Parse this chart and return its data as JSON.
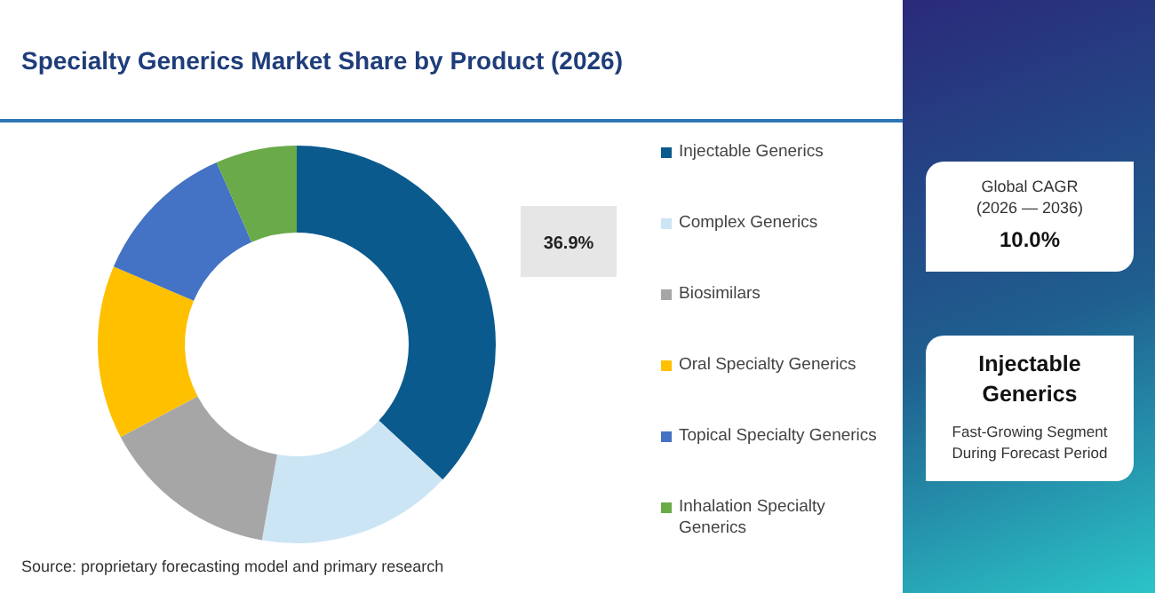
{
  "chart_data": {
    "type": "donut",
    "title": "Specialty Generics Market Share by Product (2026)",
    "categories": [
      "Injectable Generics",
      "Complex Generics",
      "Biosimilars",
      "Oral Specialty Generics",
      "Topical Specialty Generics",
      "Inhalation Specialty Generics"
    ],
    "values": [
      36.9,
      15.9,
      14.5,
      14.1,
      12.0,
      6.6
    ],
    "colors": [
      "#0b5a8e",
      "#cce5f5",
      "#a6a6a6",
      "#ffc000",
      "#4472c4",
      "#6aaa48"
    ],
    "value_labels": [
      "36.9%",
      null,
      null,
      null,
      null,
      null
    ],
    "legend": "right",
    "annotations": [
      "Source: proprietary forecasting model and primary research",
      "Global CAGR",
      "(2026 — 2036)",
      "10.0%",
      "Injectable Generics",
      "Fast-Growing Segment During Forecast Period"
    ]
  }
}
